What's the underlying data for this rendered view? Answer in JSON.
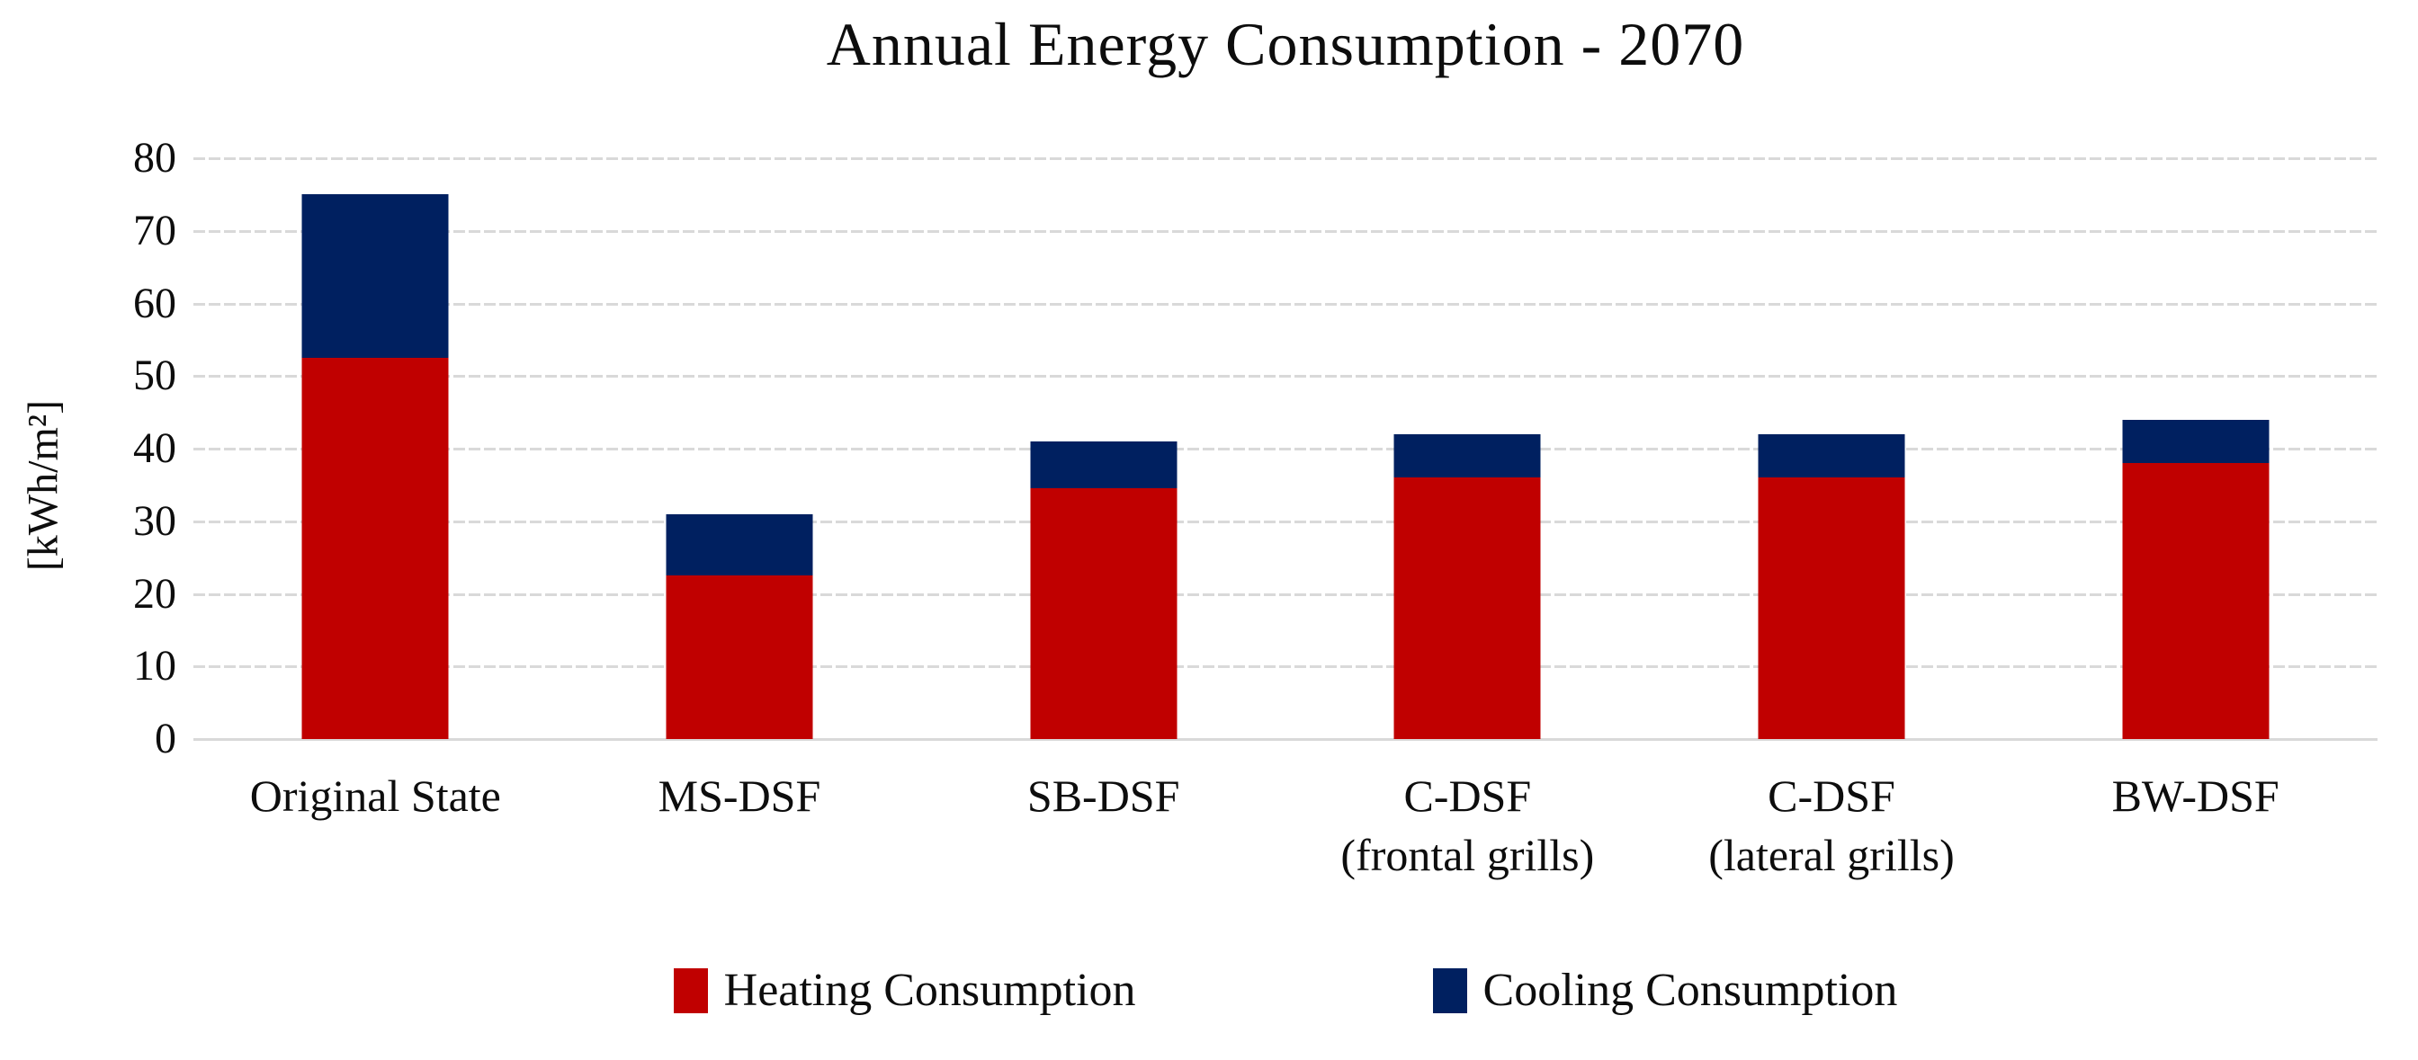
{
  "chart_data": {
    "type": "bar",
    "stacked": true,
    "title": "Annual Energy Consumption - 2070",
    "ylabel": "[kWh/m²]",
    "xlabel": "",
    "ylim": [
      0,
      80
    ],
    "yticks": [
      80,
      70,
      60,
      50,
      40,
      30,
      20,
      10,
      0
    ],
    "grid": "horizontal-dashed",
    "legend_position": "bottom",
    "categories": [
      "Original State",
      "MS-DSF",
      "SB-DSF",
      "C-DSF (frontal grills)",
      "C-DSF (lateral grills)",
      "BW-DSF"
    ],
    "category_lines": [
      [
        "Original State"
      ],
      [
        "MS-DSF"
      ],
      [
        "SB-DSF"
      ],
      [
        "C-DSF",
        "(frontal grills)"
      ],
      [
        "C-DSF",
        "(lateral grills)"
      ],
      [
        "BW-DSF"
      ]
    ],
    "series": [
      {
        "name": "Heating Consumption",
        "color": "#C00000",
        "values": [
          52.5,
          22.5,
          34.5,
          36,
          36,
          38
        ]
      },
      {
        "name": "Cooling Consumption",
        "color": "#002060",
        "values": [
          22.5,
          8.5,
          6.5,
          6,
          6,
          6
        ]
      }
    ]
  },
  "colors": {
    "gridline": "#D9D9D9",
    "text": "#0D0D0D",
    "background": "#FFFFFF"
  }
}
